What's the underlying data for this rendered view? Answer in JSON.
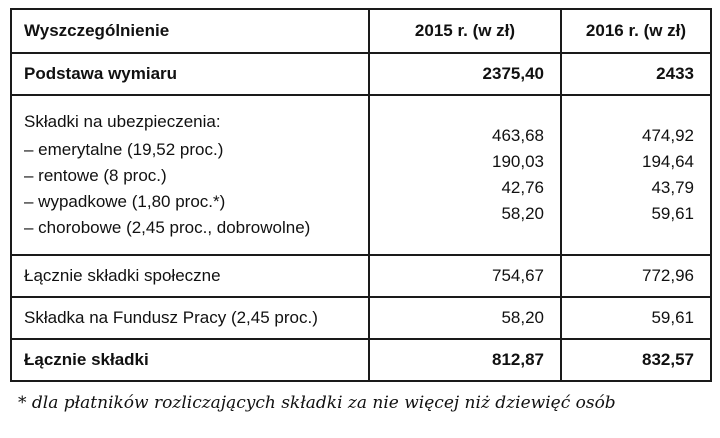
{
  "table": {
    "columns": [
      "Wyszczególnienie",
      "2015 r. (w zł)",
      "2016 r. (w zł)"
    ],
    "rows": [
      {
        "label": "Podstawa wymiaru",
        "v2015": "2375,40",
        "v2016": "2433",
        "bold": true
      },
      {
        "label_lines": [
          "Składki na ubezpieczenia:",
          "– emerytalne (19,52 proc.)",
          "– rentowe (8 proc.)",
          "– wypadkowe (1,80 proc.*)",
          "– chorobowe (2,45 proc., dobrowolne)"
        ],
        "v2015_lines": [
          "463,68",
          "190,03",
          "42,76",
          "58,20"
        ],
        "v2016_lines": [
          "474,92",
          "194,64",
          "43,79",
          "59,61"
        ],
        "bold": false
      },
      {
        "label": "Łącznie składki społeczne",
        "v2015": "754,67",
        "v2016": "772,96",
        "bold": false
      },
      {
        "label": "Składka na Fundusz Pracy (2,45 proc.)",
        "v2015": "58,20",
        "v2016": "59,61",
        "bold": false
      },
      {
        "label": "Łącznie składki",
        "v2015": "812,87",
        "v2016": "832,57",
        "bold": true
      }
    ],
    "footnote": "* dla płatników rozliczających składki za nie więcej niż dziewięć osób",
    "border_color": "#1a1a1a",
    "background_color": "#ffffff"
  }
}
